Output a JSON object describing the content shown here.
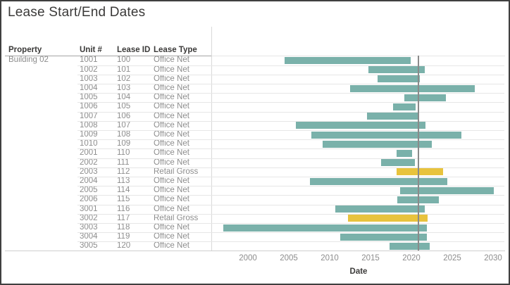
{
  "window": {
    "title": "Lease Start/End Dates"
  },
  "table": {
    "headers": {
      "property": "Property",
      "unit": "Unit #",
      "lease_id": "Lease ID",
      "lease_type": "Lease Type"
    },
    "property_value": "Building 02"
  },
  "chart_data": {
    "type": "gantt",
    "title": "Lease Start/End Dates",
    "xlabel": "Date",
    "x_ticks": [
      2000,
      2005,
      2010,
      2015,
      2020,
      2025,
      2030
    ],
    "x_range": [
      1995.8,
      2031.6
    ],
    "grid": "horizontal-row-separators-only",
    "reference_line_year": 2020.8,
    "colors": {
      "Office Net": "#7AB1AA",
      "Retail Gross": "#E8C33D"
    },
    "legend": "none",
    "rows": [
      {
        "property": "Building 02",
        "unit": "1001",
        "lease_id": "100",
        "lease_type": "Office Net",
        "start": 2004.5,
        "end": 2019.9
      },
      {
        "property": "Building 02",
        "unit": "1002",
        "lease_id": "101",
        "lease_type": "Office Net",
        "start": 2014.7,
        "end": 2021.6
      },
      {
        "property": "Building 02",
        "unit": "1003",
        "lease_id": "102",
        "lease_type": "Office Net",
        "start": 2015.9,
        "end": 2021.0
      },
      {
        "property": "Building 02",
        "unit": "1004",
        "lease_id": "103",
        "lease_type": "Office Net",
        "start": 2012.5,
        "end": 2027.8
      },
      {
        "property": "Building 02",
        "unit": "1005",
        "lease_id": "104",
        "lease_type": "Office Net",
        "start": 2019.1,
        "end": 2024.2
      },
      {
        "property": "Building 02",
        "unit": "1006",
        "lease_id": "105",
        "lease_type": "Office Net",
        "start": 2017.8,
        "end": 2020.5
      },
      {
        "property": "Building 02",
        "unit": "1007",
        "lease_id": "106",
        "lease_type": "Office Net",
        "start": 2014.6,
        "end": 2020.8
      },
      {
        "property": "Building 02",
        "unit": "1008",
        "lease_id": "107",
        "lease_type": "Office Net",
        "start": 2005.9,
        "end": 2021.7
      },
      {
        "property": "Building 02",
        "unit": "1009",
        "lease_id": "108",
        "lease_type": "Office Net",
        "start": 2007.8,
        "end": 2026.1
      },
      {
        "property": "Building 02",
        "unit": "1010",
        "lease_id": "109",
        "lease_type": "Office Net",
        "start": 2009.1,
        "end": 2022.5
      },
      {
        "property": "Building 02",
        "unit": "2001",
        "lease_id": "110",
        "lease_type": "Office Net",
        "start": 2018.2,
        "end": 2020.1
      },
      {
        "property": "Building 02",
        "unit": "2002",
        "lease_id": "111",
        "lease_type": "Office Net",
        "start": 2016.3,
        "end": 2020.4
      },
      {
        "property": "Building 02",
        "unit": "2003",
        "lease_id": "112",
        "lease_type": "Retail Gross",
        "start": 2018.2,
        "end": 2023.9
      },
      {
        "property": "Building 02",
        "unit": "2004",
        "lease_id": "113",
        "lease_type": "Office Net",
        "start": 2007.6,
        "end": 2024.4
      },
      {
        "property": "Building 02",
        "unit": "2005",
        "lease_id": "114",
        "lease_type": "Office Net",
        "start": 2018.6,
        "end": 2030.1
      },
      {
        "property": "Building 02",
        "unit": "2006",
        "lease_id": "115",
        "lease_type": "Office Net",
        "start": 2018.3,
        "end": 2023.4
      },
      {
        "property": "Building 02",
        "unit": "3001",
        "lease_id": "116",
        "lease_type": "Office Net",
        "start": 2010.7,
        "end": 2021.6
      },
      {
        "property": "Building 02",
        "unit": "3002",
        "lease_id": "117",
        "lease_type": "Retail Gross",
        "start": 2012.2,
        "end": 2022.0
      },
      {
        "property": "Building 02",
        "unit": "3003",
        "lease_id": "118",
        "lease_type": "Office Net",
        "start": 1997.0,
        "end": 2021.9
      },
      {
        "property": "Building 02",
        "unit": "3004",
        "lease_id": "119",
        "lease_type": "Office Net",
        "start": 2011.3,
        "end": 2021.9
      },
      {
        "property": "Building 02",
        "unit": "3005",
        "lease_id": "120",
        "lease_type": "Office Net",
        "start": 2017.3,
        "end": 2022.2
      }
    ]
  }
}
